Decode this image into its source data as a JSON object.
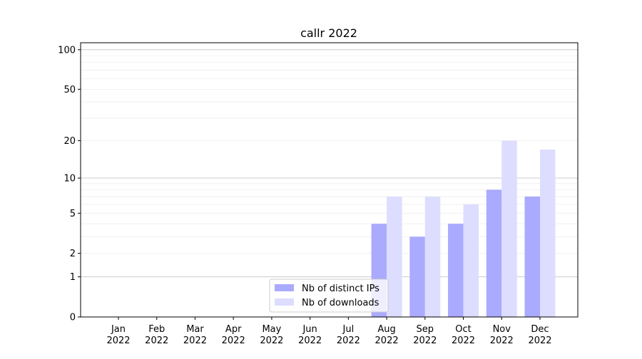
{
  "chart_data": {
    "type": "bar",
    "title": "callr 2022",
    "xlabel": "",
    "ylabel": "",
    "yscale": "symlog",
    "ylim": [
      0,
      110
    ],
    "yticks": [
      0,
      1,
      2,
      5,
      10,
      20,
      50,
      100
    ],
    "ytick_labels": [
      "0",
      "1",
      "2",
      "5",
      "10",
      "20",
      "50",
      "100"
    ],
    "grid": true,
    "legend_position": "bottom-center",
    "categories": [
      "Jan\n2022",
      "Feb\n2022",
      "Mar\n2022",
      "Apr\n2022",
      "May\n2022",
      "Jun\n2022",
      "Jul\n2022",
      "Aug\n2022",
      "Sep\n2022",
      "Oct\n2022",
      "Nov\n2022",
      "Dec\n2022"
    ],
    "series": [
      {
        "name": "Nb of distinct IPs",
        "color": "#aaaaff",
        "values": [
          0,
          0,
          0,
          0,
          0,
          0,
          0,
          4,
          3,
          4,
          8,
          7
        ]
      },
      {
        "name": "Nb of downloads",
        "color": "#ddddff",
        "values": [
          0,
          0,
          0,
          0,
          0,
          0,
          0,
          7,
          7,
          6,
          20,
          17
        ]
      }
    ]
  }
}
